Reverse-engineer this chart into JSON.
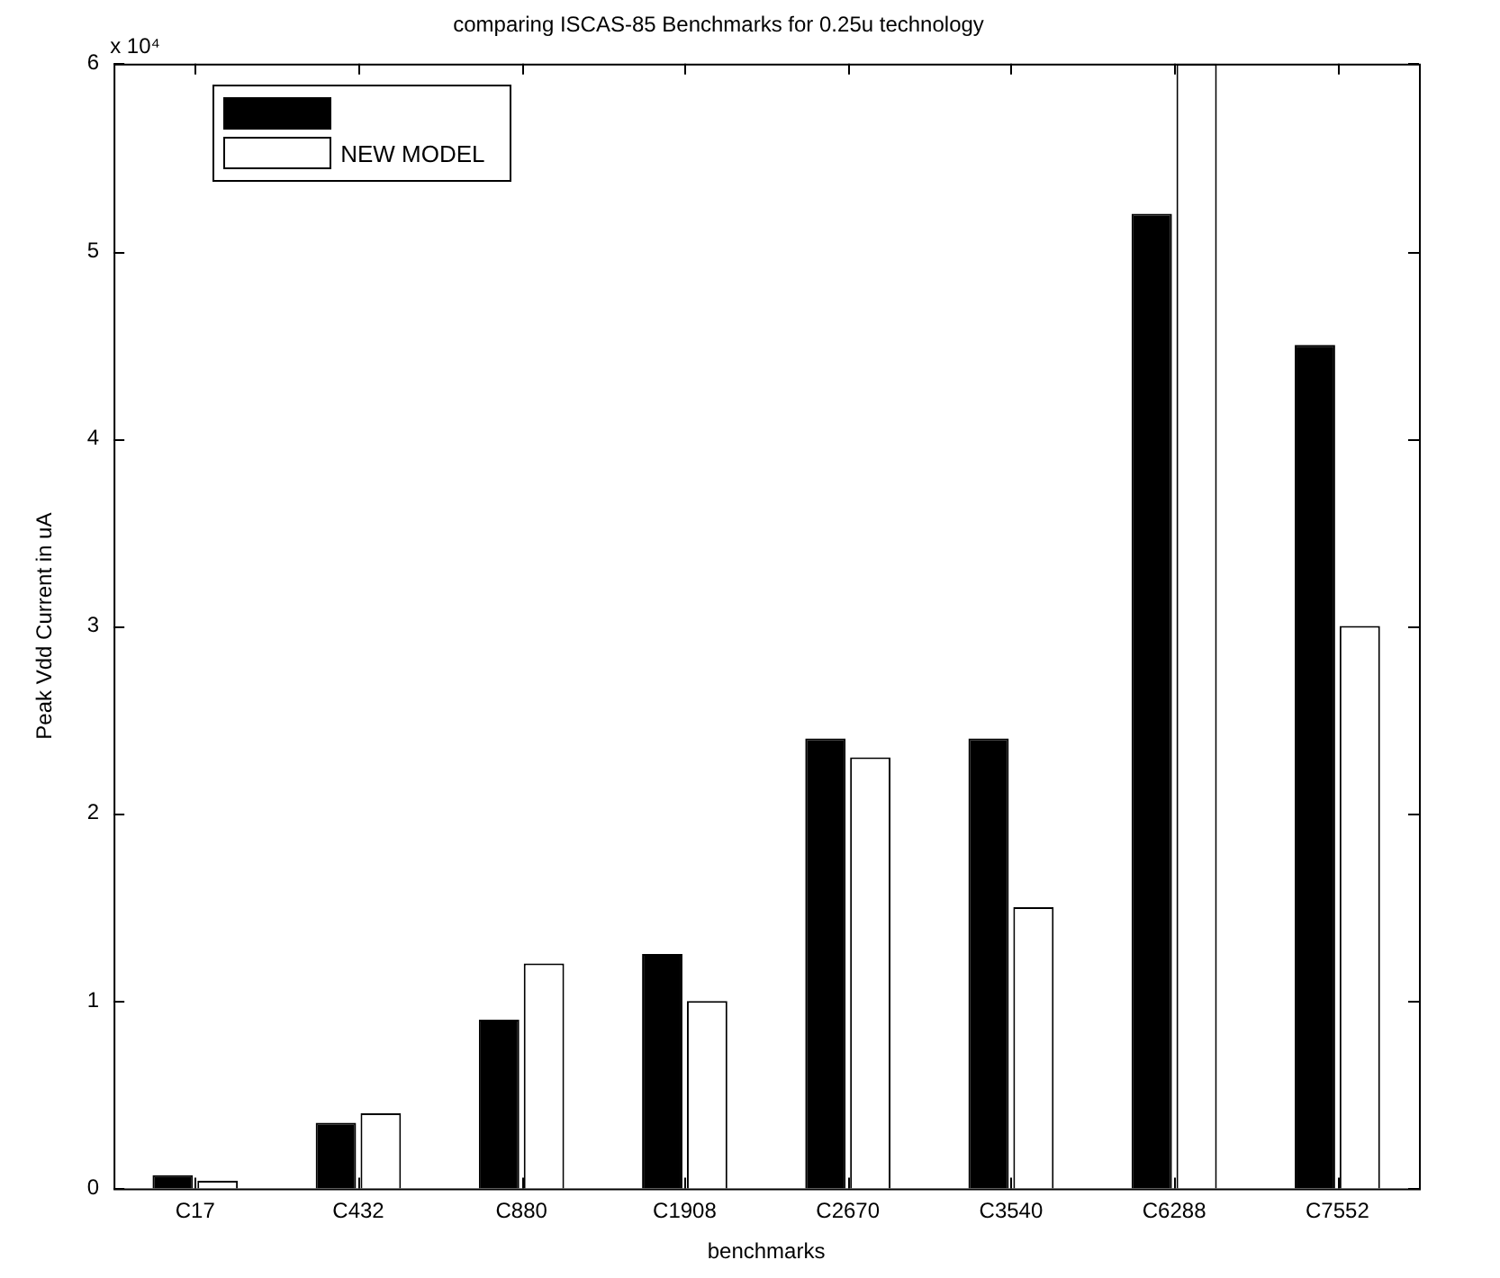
{
  "chart_data": {
    "type": "bar",
    "title": "comparing ISCAS-85 Benchmarks for 0.25u technology",
    "xlabel": "benchmarks",
    "ylabel": "Peak Vdd Current in uA",
    "categories": [
      "C17",
      "C432",
      "C880",
      "C1908",
      "C2670",
      "C3540",
      "C6288",
      "C7552"
    ],
    "series": [
      {
        "color": "#000000",
        "values": [
          0.07,
          0.35,
          0.9,
          1.25,
          2.4,
          2.4,
          5.2,
          4.5
        ]
      },
      {
        "name": "NEW MODEL",
        "color": "#ffffff",
        "values": [
          0.04,
          0.4,
          1.2,
          1.0,
          2.3,
          1.5,
          6,
          3.0
        ]
      }
    ],
    "ylim": [
      0,
      6
    ],
    "yticks": [
      0,
      1,
      2,
      3,
      4,
      5,
      6
    ],
    "annotations": [
      "x 10⁴"
    ],
    "grid": false,
    "legend": "top left"
  }
}
